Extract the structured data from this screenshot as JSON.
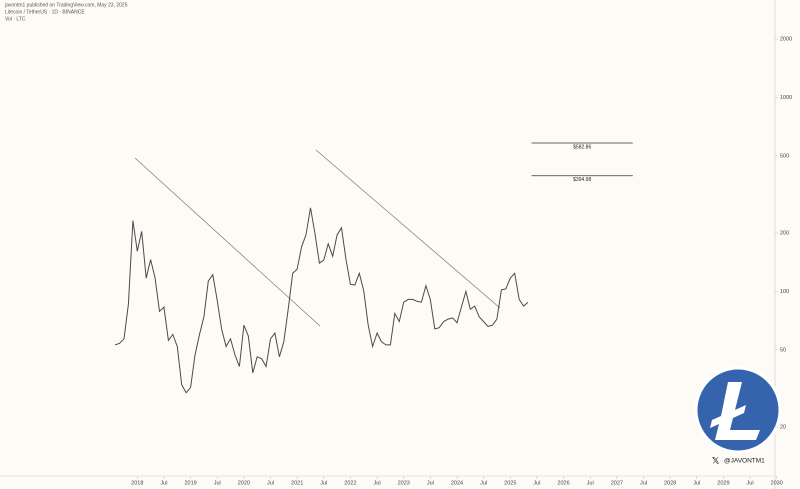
{
  "chart_data": {
    "type": "line",
    "header": "javontm1 published on TradingView.com, May 23, 2025",
    "subtitle": "Litecoin / TetherUS · 1D · BINANCE",
    "volume_label": "Vol · LTC",
    "watermark": "@JAVONTM1",
    "log_scale": true,
    "grid": false,
    "xlim": [
      2017.3,
      2030.1
    ],
    "xticks": [
      2018,
      {
        "value": 2018.5,
        "label": "Jul"
      },
      2019,
      {
        "value": 2019.5,
        "label": "Jul"
      },
      2020,
      {
        "value": 2020.5,
        "label": "Jul"
      },
      2021,
      {
        "value": 2021.5,
        "label": "Jul"
      },
      2022,
      {
        "value": 2022.5,
        "label": "Jul"
      },
      2023,
      {
        "value": 2023.5,
        "label": "Jul"
      },
      2024,
      {
        "value": 2024.5,
        "label": "Jul"
      },
      2025,
      {
        "value": 2025.5,
        "label": "Jul"
      },
      2026,
      {
        "value": 2026.5,
        "label": "Jul"
      },
      2027,
      {
        "value": 2027.5,
        "label": "Jul"
      },
      2028,
      {
        "value": 2028.5,
        "label": "Jul"
      },
      2029,
      {
        "value": 2029.5,
        "label": "Jul"
      },
      2030
    ],
    "ylim": [
      12,
      3000
    ],
    "yticks": [
      20,
      50,
      100,
      200,
      500,
      1000,
      2000
    ],
    "levels": [
      {
        "value": 582.86,
        "label": "$582.86",
        "x": [
          2025.4,
          2027.3
        ]
      },
      {
        "value": 394.98,
        "label": "$394.98",
        "x": [
          2025.4,
          2027.3
        ]
      }
    ],
    "x": [
      2017.583,
      2017.667,
      2017.75,
      2017.833,
      2017.917,
      2018,
      2018.083,
      2018.167,
      2018.25,
      2018.333,
      2018.417,
      2018.5,
      2018.583,
      2018.667,
      2018.75,
      2018.833,
      2018.917,
      2019,
      2019.083,
      2019.167,
      2019.25,
      2019.333,
      2019.417,
      2019.5,
      2019.583,
      2019.667,
      2019.75,
      2019.833,
      2019.917,
      2020,
      2020.083,
      2020.167,
      2020.25,
      2020.333,
      2020.417,
      2020.5,
      2020.583,
      2020.667,
      2020.75,
      2020.833,
      2020.917,
      2021,
      2021.083,
      2021.167,
      2021.25,
      2021.333,
      2021.417,
      2021.5,
      2021.583,
      2021.667,
      2021.75,
      2021.833,
      2021.917,
      2022,
      2022.083,
      2022.167,
      2022.25,
      2022.333,
      2022.417,
      2022.5,
      2022.583,
      2022.667,
      2022.75,
      2022.833,
      2022.917,
      2023,
      2023.083,
      2023.167,
      2023.25,
      2023.333,
      2023.417,
      2023.5,
      2023.583,
      2023.667,
      2023.75,
      2023.833,
      2023.917,
      2024,
      2024.083,
      2024.167,
      2024.25,
      2024.333,
      2024.417,
      2024.5,
      2024.583,
      2024.667,
      2024.75,
      2024.833,
      2024.917,
      2025,
      2025.083,
      2025.167,
      2025.25,
      2025.333
    ],
    "series": [
      {
        "name": "Litecoin / TetherUS",
        "color": "#4a4a4a",
        "values": [
          53,
          54,
          57,
          86,
          232,
          161,
          204,
          117,
          146,
          118,
          79,
          83,
          56,
          60,
          52,
          33,
          30,
          32,
          47,
          60,
          74,
          113,
          122,
          90,
          64,
          52,
          57,
          47,
          41,
          67,
          59,
          38,
          46,
          45,
          41,
          57,
          61,
          46,
          55,
          81,
          124,
          130,
          170,
          196,
          270,
          200,
          140,
          145,
          176,
          152,
          196,
          213,
          146,
          109,
          108,
          124,
          101,
          67,
          52,
          61,
          55,
          53,
          53,
          77,
          70,
          88,
          91,
          91,
          89,
          88,
          107,
          91,
          64,
          65,
          70,
          72,
          73,
          69,
          83,
          100,
          81,
          84,
          74,
          70,
          66,
          67,
          72,
          102,
          103,
          117,
          124,
          91,
          84,
          88
        ]
      }
    ]
  }
}
